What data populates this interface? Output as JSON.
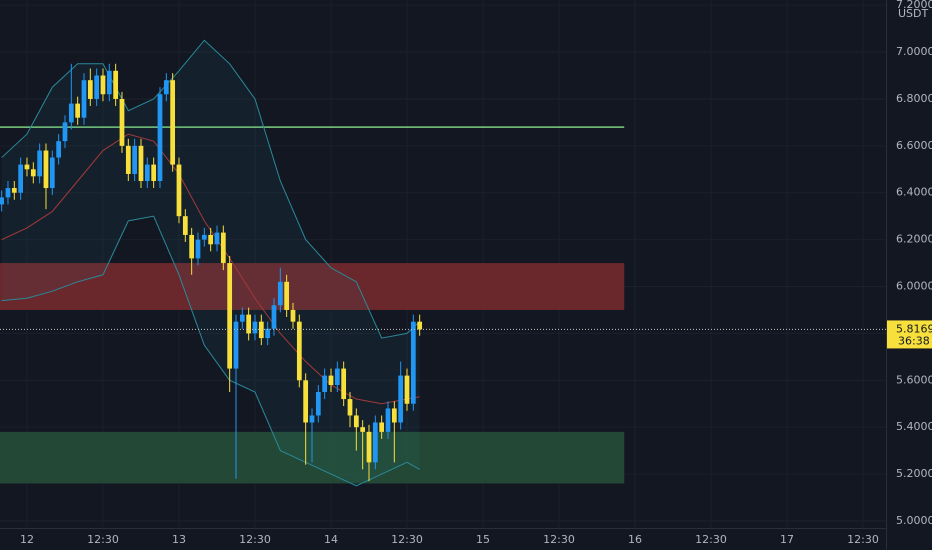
{
  "chart_data": {
    "type": "candlestick",
    "currency": "USDT",
    "countdown": "36:38",
    "xlim": [
      -4.26,
      135.63
    ],
    "ylim": [
      4.97,
      7.222
    ],
    "xticks": [
      {
        "value": 0,
        "label": "12"
      },
      {
        "value": 12,
        "label": "12:30"
      },
      {
        "value": 24,
        "label": "13"
      },
      {
        "value": 36,
        "label": "12:30"
      },
      {
        "value": 48,
        "label": "14"
      },
      {
        "value": 60,
        "label": "12:30"
      },
      {
        "value": 72,
        "label": "15"
      },
      {
        "value": 84,
        "label": "12:30"
      },
      {
        "value": 96,
        "label": "16"
      },
      {
        "value": 108,
        "label": "12:30"
      },
      {
        "value": 120,
        "label": "17"
      },
      {
        "value": 132,
        "label": "12:30"
      }
    ],
    "yticks": [
      {
        "value": 5.0,
        "label": "5.0000"
      },
      {
        "value": 5.2,
        "label": "5.2000"
      },
      {
        "value": 5.4,
        "label": "5.4000"
      },
      {
        "value": 5.6,
        "label": "5.6000"
      },
      {
        "value": 5.8,
        "label": "5.8000"
      },
      {
        "value": 6.0,
        "label": "6.0000"
      },
      {
        "value": 6.2,
        "label": "6.2000"
      },
      {
        "value": 6.4,
        "label": "6.4000"
      },
      {
        "value": 6.6,
        "label": "6.6000"
      },
      {
        "value": 6.8,
        "label": "6.8000"
      },
      {
        "value": 7.0,
        "label": "7.0000"
      },
      {
        "value": 7.2,
        "label": "7.2000"
      }
    ],
    "grid": true,
    "up_color": "#2196f3",
    "down_color": "#f7e03c",
    "x": [
      -4,
      -3,
      -2,
      -1,
      0,
      1,
      2,
      3,
      4,
      5,
      6,
      7,
      8,
      9,
      10,
      11,
      12,
      13,
      14,
      15,
      16,
      17,
      18,
      19,
      20,
      21,
      22,
      23,
      24,
      25,
      26,
      27,
      28,
      29,
      30,
      31,
      32,
      33,
      34,
      35,
      36,
      37,
      38,
      39,
      40,
      41,
      42,
      43,
      44,
      45,
      46,
      47,
      48,
      49,
      50,
      51,
      52,
      53,
      54,
      55,
      56,
      57,
      58,
      59,
      60,
      61,
      62
    ],
    "open": [
      6.35,
      6.38,
      6.42,
      6.4,
      6.52,
      6.5,
      6.47,
      6.58,
      6.42,
      6.55,
      6.62,
      6.7,
      6.78,
      6.72,
      6.88,
      6.8,
      6.9,
      6.82,
      6.92,
      6.8,
      6.6,
      6.48,
      6.6,
      6.45,
      6.52,
      6.45,
      6.82,
      6.88,
      6.52,
      6.3,
      6.22,
      6.12,
      6.2,
      6.22,
      6.18,
      6.23,
      6.1,
      5.65,
      5.85,
      5.88,
      5.8,
      5.85,
      5.78,
      5.82,
      5.92,
      6.02,
      5.9,
      5.85,
      5.6,
      5.42,
      5.45,
      5.55,
      5.62,
      5.58,
      5.65,
      5.52,
      5.45,
      5.4,
      5.38,
      5.25,
      5.42,
      5.38,
      5.48,
      5.42,
      5.62,
      5.5,
      5.85
    ],
    "high": [
      6.41,
      6.45,
      6.45,
      6.55,
      6.55,
      6.53,
      6.61,
      6.61,
      6.58,
      6.65,
      6.73,
      6.95,
      6.81,
      6.91,
      6.93,
      6.93,
      6.93,
      6.95,
      6.95,
      6.83,
      6.63,
      6.63,
      6.63,
      6.55,
      6.55,
      6.85,
      6.91,
      6.91,
      6.55,
      6.33,
      6.25,
      6.23,
      6.25,
      6.25,
      6.26,
      6.26,
      6.13,
      5.88,
      5.91,
      5.91,
      5.88,
      5.88,
      5.85,
      5.95,
      6.08,
      6.05,
      5.93,
      5.88,
      5.63,
      5.48,
      5.58,
      5.65,
      5.65,
      5.68,
      5.68,
      5.55,
      5.48,
      5.43,
      5.41,
      5.45,
      5.45,
      5.51,
      5.51,
      5.68,
      5.65,
      5.88,
      5.88
    ],
    "low": [
      6.32,
      6.35,
      6.37,
      6.37,
      6.47,
      6.44,
      6.44,
      6.33,
      6.39,
      6.52,
      6.59,
      6.67,
      6.69,
      6.69,
      6.77,
      6.77,
      6.79,
      6.79,
      6.77,
      6.57,
      6.45,
      6.45,
      6.42,
      6.42,
      6.42,
      6.42,
      6.79,
      6.49,
      6.27,
      6.19,
      6.05,
      6.09,
      6.17,
      6.15,
      6.15,
      6.07,
      5.55,
      5.18,
      5.82,
      5.77,
      5.77,
      5.75,
      5.75,
      5.79,
      5.89,
      5.87,
      5.82,
      5.57,
      5.24,
      5.25,
      5.42,
      5.52,
      5.55,
      5.55,
      5.49,
      5.4,
      5.3,
      5.22,
      5.17,
      5.22,
      5.35,
      5.35,
      5.25,
      5.39,
      5.47,
      5.47,
      5.79
    ],
    "close": [
      6.38,
      6.42,
      6.4,
      6.52,
      6.5,
      6.47,
      6.58,
      6.42,
      6.55,
      6.62,
      6.7,
      6.78,
      6.72,
      6.88,
      6.8,
      6.9,
      6.82,
      6.92,
      6.8,
      6.6,
      6.48,
      6.6,
      6.45,
      6.52,
      6.45,
      6.82,
      6.88,
      6.52,
      6.3,
      6.22,
      6.12,
      6.2,
      6.22,
      6.18,
      6.23,
      6.1,
      5.65,
      5.85,
      5.88,
      5.8,
      5.85,
      5.78,
      5.82,
      5.92,
      6.02,
      5.9,
      5.85,
      5.6,
      5.42,
      5.45,
      5.55,
      5.62,
      5.58,
      5.65,
      5.52,
      5.45,
      5.4,
      5.38,
      5.25,
      5.42,
      5.38,
      5.48,
      5.42,
      5.62,
      5.5,
      5.85,
      5.8169
    ],
    "bands": {
      "x": [
        -4,
        0,
        4,
        8,
        12,
        16,
        20,
        24,
        28,
        32,
        36,
        40,
        44,
        48,
        52,
        56,
        60,
        62
      ],
      "upper": [
        6.55,
        6.65,
        6.85,
        6.95,
        6.95,
        6.75,
        6.8,
        6.92,
        7.05,
        6.95,
        6.8,
        6.45,
        6.2,
        6.08,
        6.02,
        5.78,
        5.8,
        5.85
      ],
      "middle": [
        6.2,
        6.25,
        6.32,
        6.45,
        6.58,
        6.65,
        6.62,
        6.48,
        6.28,
        6.12,
        5.95,
        5.8,
        5.68,
        5.58,
        5.52,
        5.5,
        5.52,
        5.53
      ],
      "lower": [
        5.94,
        5.95,
        5.98,
        6.02,
        6.05,
        6.28,
        6.3,
        6.05,
        5.75,
        5.6,
        5.55,
        5.3,
        5.25,
        5.2,
        5.15,
        5.2,
        5.25,
        5.22
      ],
      "band_color": "#2a8a9a",
      "middle_color": "#a33a3a"
    },
    "levels": [
      {
        "value": 6.68,
        "x_end": 94.3,
        "color": "#7ed07e"
      }
    ],
    "zones": [
      {
        "low": 5.9,
        "high": 6.1,
        "x_end": 94.3,
        "color": "#7a2a2e"
      },
      {
        "low": 5.16,
        "high": 5.38,
        "x_end": 94.3,
        "color": "#27513a"
      }
    ]
  }
}
